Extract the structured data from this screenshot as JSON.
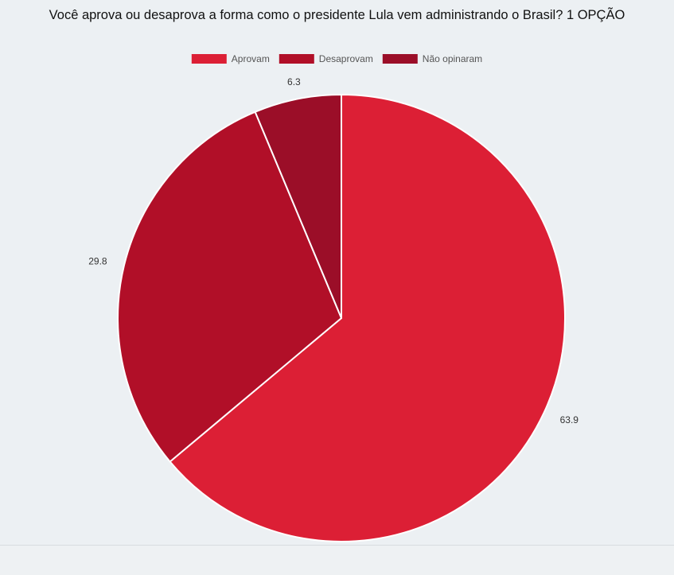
{
  "chart_data": {
    "type": "pie",
    "title": "Você aprova ou desaprova a forma como o presidente Lula vem administrando o Brasil? 1 OPÇÃO",
    "categories": [
      "Aprovam",
      "Desaprovam",
      "Não opinaram"
    ],
    "values": [
      63.9,
      29.8,
      6.3
    ],
    "value_labels": [
      "63.9",
      "29.8",
      "6.3"
    ],
    "colors": [
      "#dc1f35",
      "#b10f28",
      "#9b0e28"
    ],
    "legend_position": "top-center"
  }
}
